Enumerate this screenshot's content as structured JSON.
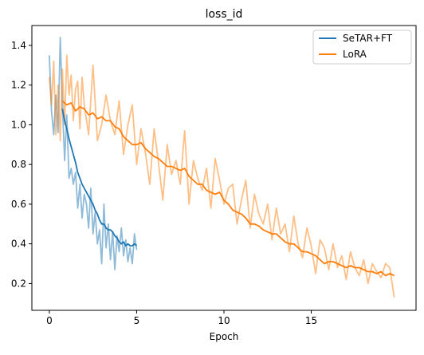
{
  "chart_data": {
    "type": "line",
    "title": "loss_id",
    "xlabel": "Epoch",
    "ylabel": "",
    "xlim": [
      -1.0,
      21.0
    ],
    "ylim": [
      0.065,
      1.5
    ],
    "xticks": [
      0,
      5,
      10,
      15
    ],
    "yticks": [
      0.2,
      0.4,
      0.6,
      0.8,
      1.0,
      1.2,
      1.4
    ],
    "xtick_labels": [
      "0",
      "5",
      "10",
      "15"
    ],
    "ytick_labels": [
      "0.2",
      "0.4",
      "0.6",
      "0.8",
      "1.0",
      "1.2",
      "1.4"
    ],
    "grid": false,
    "legend_position": "top-right",
    "series": [
      {
        "name": "SeTAR+FT",
        "color": "#1f77b4",
        "raw": {
          "x": [
            0.0,
            0.125,
            0.25,
            0.375,
            0.5,
            0.625,
            0.75,
            0.875,
            1.0,
            1.125,
            1.25,
            1.375,
            1.5,
            1.625,
            1.75,
            1.875,
            2.0,
            2.125,
            2.25,
            2.375,
            2.5,
            2.625,
            2.75,
            2.875,
            3.0,
            3.125,
            3.25,
            3.375,
            3.5,
            3.625,
            3.75,
            3.875,
            4.0,
            4.125,
            4.25,
            4.375,
            4.5,
            4.625,
            4.75,
            4.875,
            5.0
          ],
          "y": [
            1.35,
            1.07,
            0.95,
            1.15,
            0.96,
            1.44,
            1.1,
            0.82,
            1.05,
            0.73,
            0.78,
            0.7,
            0.76,
            0.58,
            0.7,
            0.53,
            0.65,
            0.6,
            0.48,
            0.68,
            0.45,
            0.56,
            0.4,
            0.47,
            0.3,
            0.6,
            0.38,
            0.5,
            0.32,
            0.46,
            0.27,
            0.44,
            0.36,
            0.48,
            0.34,
            0.42,
            0.31,
            0.38,
            0.3,
            0.45,
            0.37
          ]
        },
        "smoothed": {
          "x": [
            0.75,
            0.875,
            1.0,
            1.125,
            1.25,
            1.375,
            1.5,
            1.625,
            1.75,
            1.875,
            2.0,
            2.125,
            2.25,
            2.375,
            2.5,
            2.625,
            2.75,
            2.875,
            3.0,
            3.125,
            3.25,
            3.375,
            3.5,
            3.625,
            3.75,
            3.875,
            4.0,
            4.125,
            4.25,
            4.375,
            4.5,
            4.625,
            4.75,
            4.875,
            5.0
          ],
          "y": [
            1.08,
            1.02,
            0.98,
            0.93,
            0.89,
            0.85,
            0.81,
            0.76,
            0.73,
            0.7,
            0.68,
            0.66,
            0.64,
            0.62,
            0.6,
            0.57,
            0.55,
            0.52,
            0.5,
            0.5,
            0.48,
            0.47,
            0.47,
            0.46,
            0.44,
            0.43,
            0.41,
            0.4,
            0.41,
            0.39,
            0.4,
            0.39,
            0.39,
            0.4,
            0.39
          ]
        }
      },
      {
        "name": "LoRA",
        "color": "#ff7f0e",
        "raw": {
          "x": [
            0.0,
            0.125,
            0.25,
            0.375,
            0.5,
            0.625,
            0.75,
            0.875,
            1.0,
            1.125,
            1.25,
            1.375,
            1.5,
            1.625,
            1.75,
            1.875,
            2.0,
            2.25,
            2.5,
            2.75,
            3.0,
            3.25,
            3.5,
            3.75,
            4.0,
            4.25,
            4.5,
            4.75,
            5.0,
            5.25,
            5.5,
            5.75,
            6.0,
            6.25,
            6.5,
            6.75,
            7.0,
            7.25,
            7.5,
            7.75,
            8.0,
            8.25,
            8.5,
            8.75,
            9.0,
            9.25,
            9.5,
            9.75,
            10.0,
            10.25,
            10.5,
            10.75,
            11.0,
            11.25,
            11.5,
            11.75,
            12.0,
            12.25,
            12.5,
            12.75,
            13.0,
            13.25,
            13.5,
            13.75,
            14.0,
            14.25,
            14.5,
            14.75,
            15.0,
            15.25,
            15.5,
            15.75,
            16.0,
            16.25,
            16.5,
            16.75,
            17.0,
            17.25,
            17.5,
            17.75,
            18.0,
            18.25,
            18.5,
            18.75,
            19.0,
            19.25,
            19.5,
            19.75
          ],
          "y": [
            1.24,
            1.1,
            1.32,
            0.95,
            1.2,
            0.92,
            1.28,
            1.0,
            1.35,
            1.15,
            1.25,
            1.02,
            1.18,
            1.22,
            0.98,
            1.24,
            1.1,
            0.95,
            1.3,
            0.92,
            1.0,
            1.15,
            1.02,
            0.95,
            1.12,
            0.85,
            1.0,
            1.1,
            0.8,
            0.98,
            0.86,
            0.7,
            0.98,
            0.81,
            0.62,
            0.9,
            0.75,
            0.82,
            0.7,
            0.97,
            0.6,
            0.82,
            0.73,
            0.67,
            0.78,
            0.58,
            0.83,
            0.72,
            0.6,
            0.68,
            0.7,
            0.5,
            0.62,
            0.72,
            0.48,
            0.65,
            0.55,
            0.5,
            0.6,
            0.42,
            0.58,
            0.45,
            0.5,
            0.36,
            0.54,
            0.4,
            0.33,
            0.48,
            0.39,
            0.25,
            0.42,
            0.38,
            0.27,
            0.4,
            0.28,
            0.34,
            0.22,
            0.36,
            0.28,
            0.24,
            0.32,
            0.2,
            0.3,
            0.26,
            0.23,
            0.3,
            0.28,
            0.13
          ]
        },
        "smoothed": {
          "x": [
            0.75,
            1.0,
            1.25,
            1.5,
            1.75,
            2.0,
            2.25,
            2.5,
            2.75,
            3.0,
            3.25,
            3.5,
            3.75,
            4.0,
            4.25,
            4.5,
            4.75,
            5.0,
            5.25,
            5.5,
            5.75,
            6.0,
            6.25,
            6.5,
            6.75,
            7.0,
            7.25,
            7.5,
            7.75,
            8.0,
            8.25,
            8.5,
            8.75,
            9.0,
            9.25,
            9.5,
            9.75,
            10.0,
            10.25,
            10.5,
            10.75,
            11.0,
            11.25,
            11.5,
            11.75,
            12.0,
            12.25,
            12.5,
            12.75,
            13.0,
            13.25,
            13.5,
            13.75,
            14.0,
            14.25,
            14.5,
            14.75,
            15.0,
            15.25,
            15.5,
            15.75,
            16.0,
            16.25,
            16.5,
            16.75,
            17.0,
            17.25,
            17.5,
            17.75,
            18.0,
            18.25,
            18.5,
            18.75,
            19.0,
            19.25,
            19.5,
            19.75
          ],
          "y": [
            1.12,
            1.1,
            1.11,
            1.07,
            1.09,
            1.08,
            1.05,
            1.06,
            1.03,
            1.04,
            1.02,
            1.02,
            0.99,
            0.98,
            0.94,
            0.92,
            0.9,
            0.9,
            0.91,
            0.88,
            0.86,
            0.84,
            0.83,
            0.81,
            0.79,
            0.79,
            0.78,
            0.77,
            0.78,
            0.74,
            0.72,
            0.7,
            0.7,
            0.67,
            0.66,
            0.65,
            0.66,
            0.62,
            0.6,
            0.57,
            0.56,
            0.55,
            0.53,
            0.5,
            0.5,
            0.49,
            0.47,
            0.46,
            0.45,
            0.45,
            0.43,
            0.41,
            0.4,
            0.4,
            0.38,
            0.36,
            0.36,
            0.35,
            0.34,
            0.32,
            0.3,
            0.31,
            0.31,
            0.3,
            0.29,
            0.28,
            0.29,
            0.28,
            0.28,
            0.27,
            0.26,
            0.26,
            0.25,
            0.26,
            0.24,
            0.25,
            0.24
          ]
        }
      }
    ]
  }
}
